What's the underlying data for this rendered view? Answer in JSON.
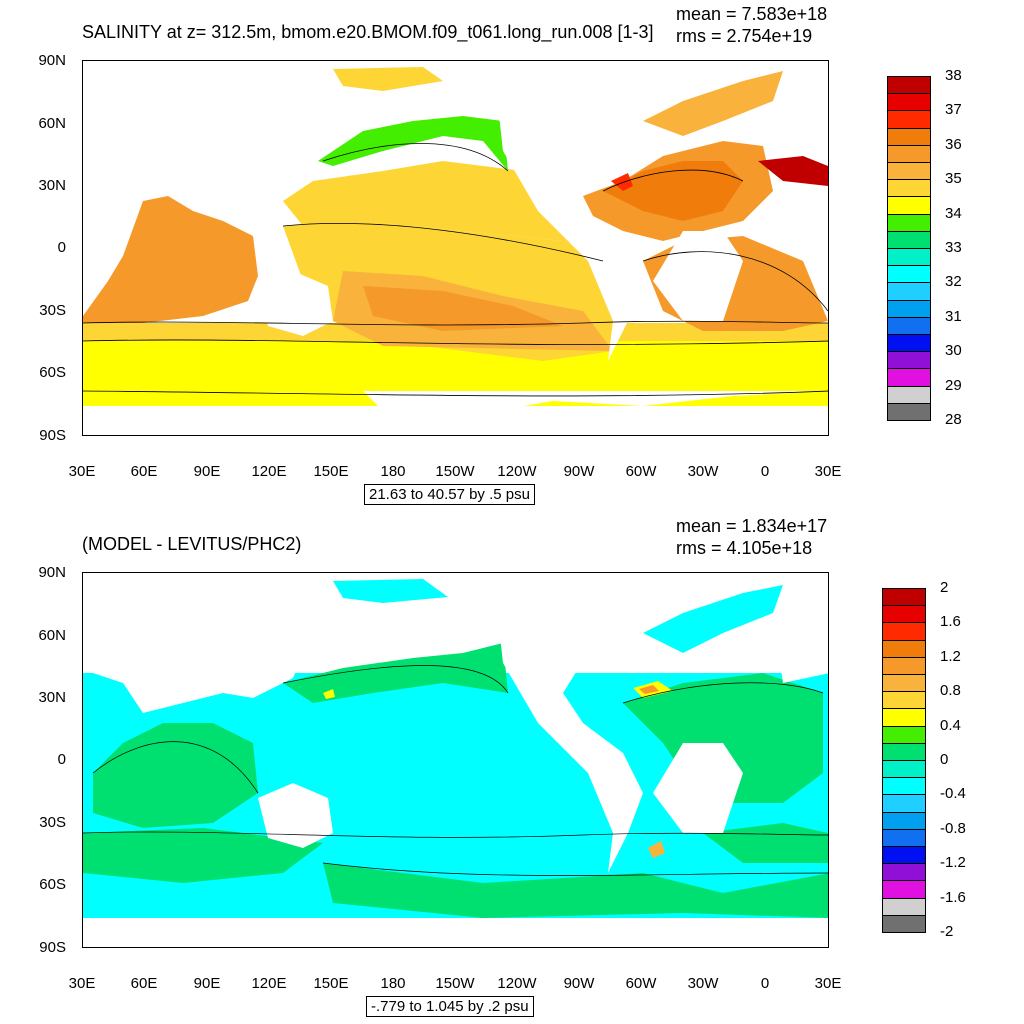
{
  "panels": [
    {
      "id": "top",
      "title": "SALINITY at z= 312.5m, bmom.e20.BMOM.f09_t061.long_run.008 [1-3]",
      "stats_mean": "mean = 7.583e+18",
      "stats_rms": "rms = 2.754e+19",
      "range_label": "21.63 to 40.57 by .5 psu",
      "lat_labels": [
        "90N",
        "60N",
        "30N",
        "0",
        "30S",
        "60S",
        "90S"
      ],
      "lon_labels": [
        "30E",
        "60E",
        "90E",
        "120E",
        "150E",
        "180",
        "150W",
        "120W",
        "90W",
        "60W",
        "30W",
        "0",
        "30E"
      ],
      "colorbar": {
        "labels": [
          "38",
          "37",
          "36",
          "35",
          "34",
          "33",
          "32",
          "31",
          "30",
          "29",
          "28"
        ],
        "colors": [
          "#c00000",
          "#e60000",
          "#ff2a00",
          "#f07c0c",
          "#f59a2a",
          "#f9b23c",
          "#fdd535",
          "#ffff00",
          "#44ee00",
          "#00e070",
          "#00f0c8",
          "#00ffff",
          "#1ecfff",
          "#00a0f0",
          "#1070f0",
          "#0010f0",
          "#9010d8",
          "#e010e0",
          "#d0d0d0",
          "#707070"
        ]
      }
    },
    {
      "id": "bottom",
      "title": "(MODEL - LEVITUS/PHC2)",
      "stats_mean": "mean = 1.834e+17",
      "stats_rms": "rms = 4.105e+18",
      "range_label": "-.779 to 1.045 by .2 psu",
      "lat_labels": [
        "90N",
        "60N",
        "30N",
        "0",
        "30S",
        "60S",
        "90S"
      ],
      "lon_labels": [
        "30E",
        "60E",
        "90E",
        "120E",
        "150E",
        "180",
        "150W",
        "120W",
        "90W",
        "60W",
        "30W",
        "0",
        "30E"
      ],
      "colorbar": {
        "labels": [
          "2",
          "1.6",
          "1.2",
          "0.8",
          "0.4",
          "0",
          "-0.4",
          "-0.8",
          "-1.2",
          "-1.6",
          "-2"
        ],
        "colors": [
          "#c00000",
          "#e60000",
          "#ff2a00",
          "#f07c0c",
          "#f59a2a",
          "#f9b23c",
          "#fdd535",
          "#ffff00",
          "#44ee00",
          "#00e070",
          "#00f0c8",
          "#00ffff",
          "#1ecfff",
          "#00a0f0",
          "#1070f0",
          "#0010f0",
          "#9010d8",
          "#e010e0",
          "#d0d0d0",
          "#707070"
        ]
      }
    }
  ]
}
